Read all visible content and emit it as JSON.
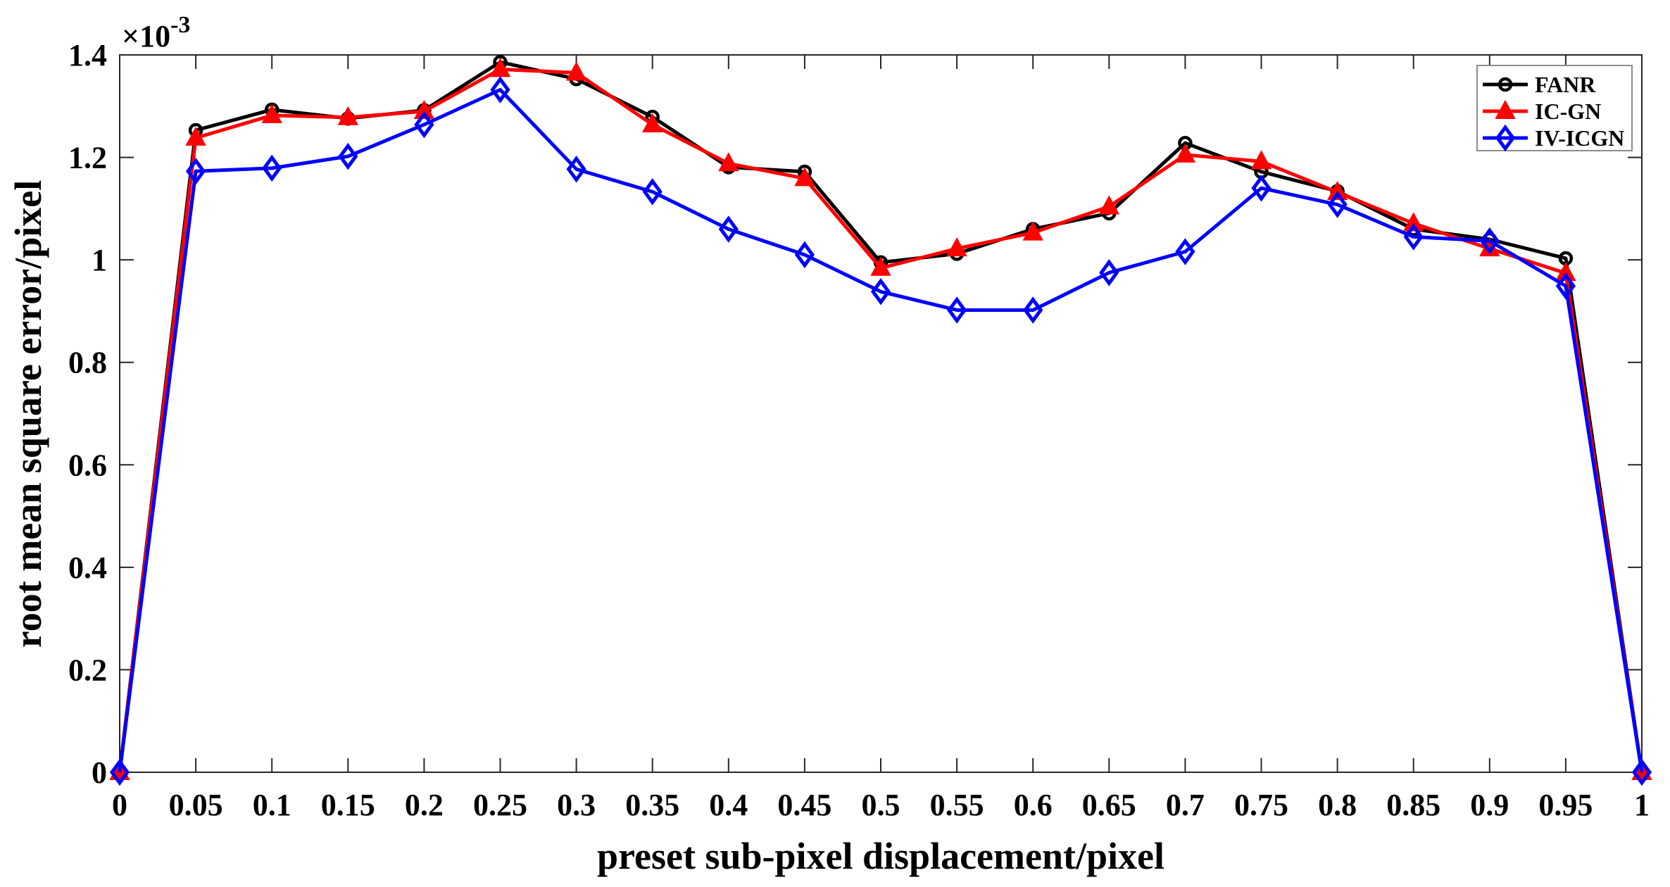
{
  "figure": {
    "y_mult_base": "×10",
    "y_mult_exp": "-3",
    "background": "#ffffff",
    "axis_color": "#262626"
  },
  "chart_data": {
    "type": "line",
    "title": "",
    "xlabel": "preset sub-pixel displacement/pixel",
    "ylabel": "root mean square error/pixel",
    "xlim": [
      0,
      1
    ],
    "ylim_e3": [
      0,
      1.4
    ],
    "y_units_note": "y values in units of 1e-3 pixel, axis multiplier ×10^-3",
    "grid": false,
    "legend_position": "top-right",
    "x": [
      0,
      0.05,
      0.1,
      0.15,
      0.2,
      0.25,
      0.3,
      0.35,
      0.4,
      0.45,
      0.5,
      0.55,
      0.6,
      0.65,
      0.7,
      0.75,
      0.8,
      0.85,
      0.9,
      0.95,
      1
    ],
    "series": [
      {
        "name": "FANR",
        "color": "#000000",
        "marker": "circle",
        "marker_fill": "open",
        "values_e3": [
          0,
          1.253,
          1.293,
          1.276,
          1.292,
          1.386,
          1.353,
          1.279,
          1.181,
          1.172,
          0.995,
          1.012,
          1.06,
          1.091,
          1.228,
          1.172,
          1.134,
          1.06,
          1.04,
          1.003,
          0
        ]
      },
      {
        "name": "IC-GN",
        "color": "#ff0000",
        "marker": "triangle",
        "marker_fill": "filled",
        "values_e3": [
          0,
          1.238,
          1.282,
          1.278,
          1.29,
          1.372,
          1.365,
          1.264,
          1.188,
          1.159,
          0.984,
          1.022,
          1.053,
          1.104,
          1.205,
          1.192,
          1.132,
          1.071,
          1.022,
          0.974,
          0
        ]
      },
      {
        "name": "IV-ICGN",
        "color": "#0000ff",
        "marker": "diamond",
        "marker_fill": "open",
        "values_e3": [
          0,
          1.173,
          1.179,
          1.202,
          1.264,
          1.332,
          1.177,
          1.133,
          1.06,
          1.01,
          0.938,
          0.902,
          0.902,
          0.975,
          1.016,
          1.14,
          1.108,
          1.045,
          1.037,
          0.949,
          0
        ]
      }
    ],
    "x_ticks": {
      "values": [
        0,
        0.05,
        0.1,
        0.15,
        0.2,
        0.25,
        0.3,
        0.35,
        0.4,
        0.45,
        0.5,
        0.55,
        0.6,
        0.65,
        0.7,
        0.75,
        0.8,
        0.85,
        0.9,
        0.95,
        1
      ],
      "labels": [
        "0",
        "0.05",
        "0.1",
        "0.15",
        "0.2",
        "0.25",
        "0.3",
        "0.35",
        "0.4",
        "0.45",
        "0.5",
        "0.55",
        "0.6",
        "0.65",
        "0.7",
        "0.75",
        "0.8",
        "0.85",
        "0.9",
        "0.95",
        "1"
      ]
    },
    "y_ticks": {
      "values_e3": [
        0,
        0.2,
        0.4,
        0.6,
        0.8,
        1.0,
        1.2,
        1.4
      ],
      "labels": [
        "0",
        "0.2",
        "0.4",
        "0.6",
        "0.8",
        "1",
        "1.2",
        "1.4"
      ]
    }
  },
  "legend": {
    "items": [
      {
        "label": "FANR"
      },
      {
        "label": "IC-GN"
      },
      {
        "label": "IV-ICGN"
      }
    ]
  }
}
